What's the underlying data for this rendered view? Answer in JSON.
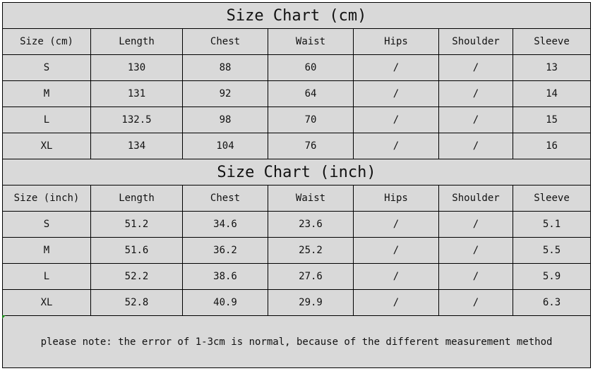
{
  "cm_table": {
    "title": "Size Chart (cm)",
    "headers": [
      "Size (cm)",
      "Length",
      "Chest",
      "Waist",
      "Hips",
      "Shoulder",
      "Sleeve"
    ],
    "rows": [
      [
        "S",
        "130",
        "88",
        "60",
        "/",
        "/",
        "13"
      ],
      [
        "M",
        "131",
        "92",
        "64",
        "/",
        "/",
        "14"
      ],
      [
        "L",
        "132.5",
        "98",
        "70",
        "/",
        "/",
        "15"
      ],
      [
        "XL",
        "134",
        "104",
        "76",
        "/",
        "/",
        "16"
      ]
    ]
  },
  "inch_table": {
    "title": "Size Chart (inch)",
    "headers": [
      "Size (inch)",
      "Length",
      "Chest",
      "Waist",
      "Hips",
      "Shoulder",
      "Sleeve"
    ],
    "rows": [
      [
        "S",
        "51.2",
        "34.6",
        "23.6",
        "/",
        "/",
        "5.1"
      ],
      [
        "M",
        "51.6",
        "36.2",
        "25.2",
        "/",
        "/",
        "5.5"
      ],
      [
        "L",
        "52.2",
        "38.6",
        "27.6",
        "/",
        "/",
        "5.9"
      ],
      [
        "XL",
        "52.8",
        "40.9",
        "29.9",
        "/",
        "/",
        "6.3"
      ]
    ]
  },
  "note": "please note: the error of 1-3cm is normal, because of the different measurement method"
}
